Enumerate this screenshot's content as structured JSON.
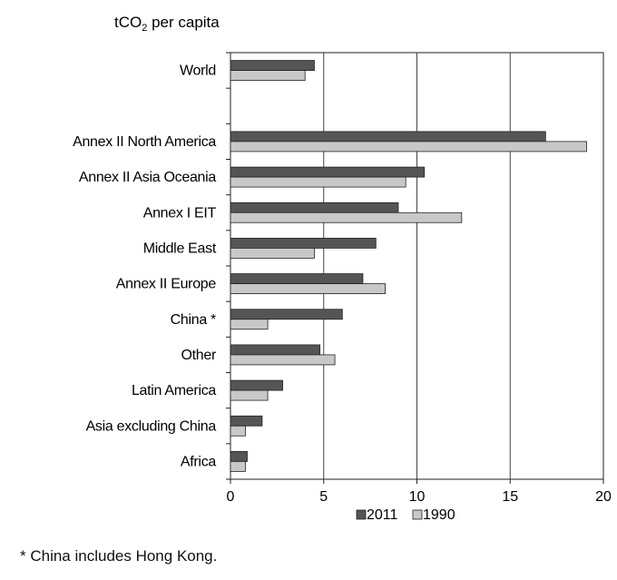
{
  "chart_data": {
    "type": "bar",
    "orientation": "horizontal",
    "title": "tCO",
    "title_sub": "2",
    "title_rest": " per capita",
    "categories": [
      "World",
      "",
      "Annex II North America",
      "Annex II Asia Oceania",
      "Annex I EIT",
      "Middle East",
      "Annex II Europe",
      "China *",
      "Other",
      "Latin America",
      "Asia excluding China",
      "Africa"
    ],
    "series": [
      {
        "name": "2011",
        "color": "#555555",
        "values": [
          4.5,
          null,
          16.9,
          10.4,
          9.0,
          7.8,
          7.1,
          6.0,
          4.8,
          2.8,
          1.7,
          0.9
        ]
      },
      {
        "name": "1990",
        "color": "#c8c8c8",
        "values": [
          4.0,
          null,
          19.1,
          9.4,
          12.4,
          4.5,
          8.3,
          2.0,
          5.6,
          2.0,
          0.8,
          0.8
        ]
      }
    ],
    "xlim": [
      0,
      20
    ],
    "xticks": [
      "0",
      "5",
      "10",
      "15",
      "20"
    ],
    "grid": true,
    "legend_position": "bottom"
  },
  "footnote": "* China includes Hong Kong."
}
